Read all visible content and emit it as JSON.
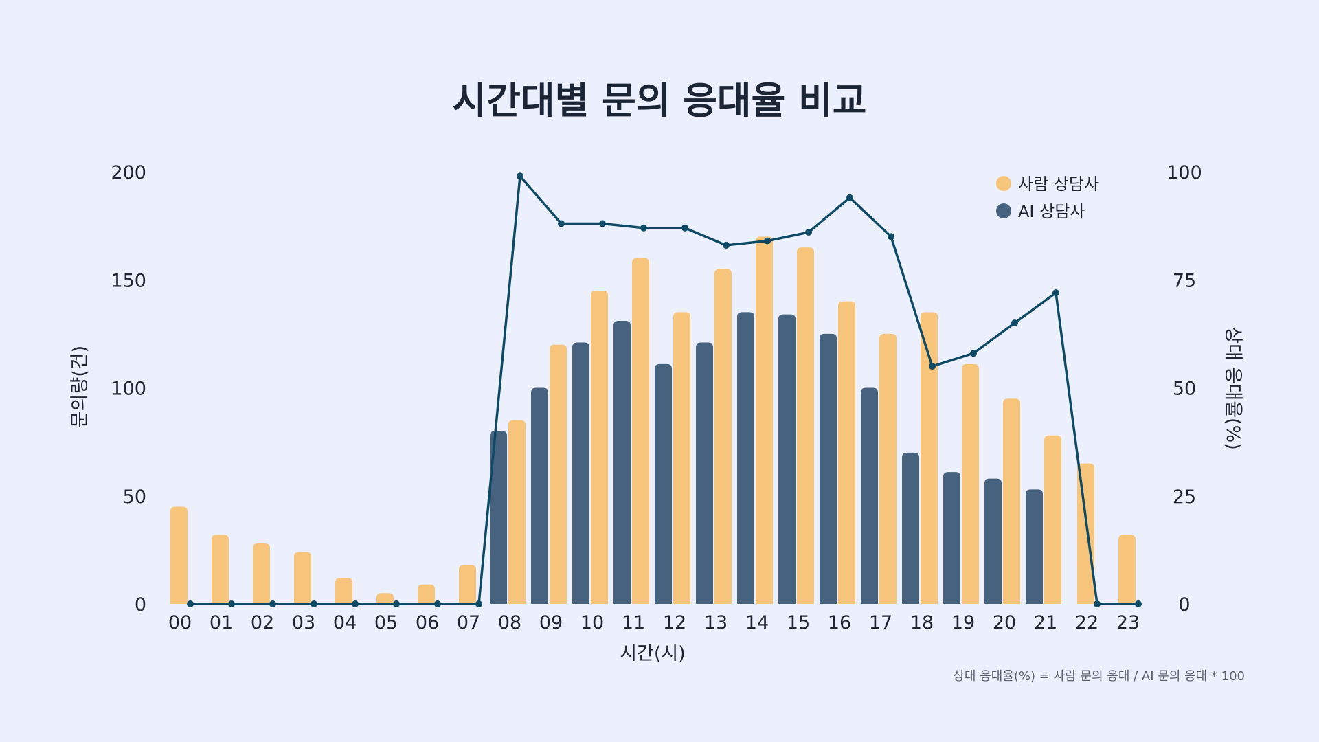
{
  "chart_data": {
    "type": "bar",
    "title": "시간대별 문의 응대율 비교",
    "xlabel": "시간(시)",
    "ylabel": "문의량(건)",
    "y2label": "상대 응대율(%)",
    "categories": [
      "00",
      "01",
      "02",
      "03",
      "04",
      "05",
      "06",
      "07",
      "08",
      "09",
      "10",
      "11",
      "12",
      "13",
      "14",
      "15",
      "16",
      "17",
      "18",
      "19",
      "20",
      "21",
      "22",
      "23"
    ],
    "ylim": [
      0,
      200
    ],
    "y2lim": [
      0,
      100
    ],
    "yticks": [
      "0",
      "50",
      "100",
      "150",
      "200"
    ],
    "y2ticks": [
      "0",
      "25",
      "50",
      "75",
      "100"
    ],
    "series": [
      {
        "name": "AI 상담사",
        "color": "#46627f",
        "values": [
          0,
          0,
          0,
          0,
          0,
          0,
          0,
          0,
          80,
          100,
          121,
          131,
          111,
          121,
          135,
          134,
          125,
          100,
          70,
          61,
          58,
          53,
          0,
          0
        ]
      },
      {
        "name": "사람 상담사",
        "color": "#f6c57b",
        "values": [
          45,
          32,
          28,
          24,
          12,
          5,
          9,
          18,
          85,
          120,
          145,
          160,
          135,
          155,
          170,
          165,
          140,
          125,
          135,
          111,
          95,
          78,
          65,
          32
        ]
      }
    ],
    "line": {
      "color": "#0e4a66",
      "axis": "right",
      "values": [
        0,
        0,
        0,
        0,
        0,
        0,
        0,
        0,
        99,
        88,
        88,
        87,
        87,
        83,
        84,
        86,
        94,
        85,
        55,
        58,
        65,
        72,
        0,
        0
      ]
    },
    "legend_position": "top-right",
    "grid": false,
    "note": "상대 응대율(%) = 사람 문의 응대 / AI 문의 응대 * 100"
  }
}
